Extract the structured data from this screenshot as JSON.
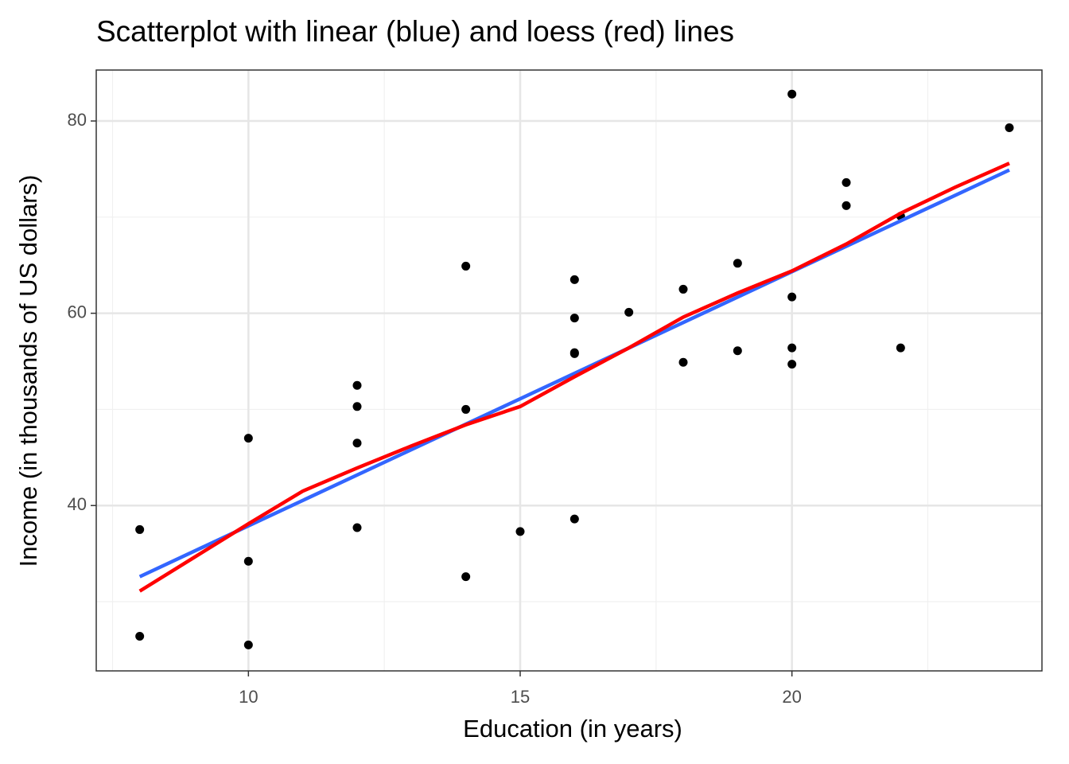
{
  "chart_data": {
    "type": "scatter",
    "title": "Scatterplot with linear (blue) and loess (red) lines",
    "x_label": "Education (in years)",
    "y_label": "Income (in thousands of US dollars)",
    "x": [
      8,
      8,
      10,
      10,
      10,
      12,
      12,
      12,
      12,
      14,
      14,
      14,
      15,
      16,
      16,
      16,
      16,
      16,
      17,
      18,
      18,
      19,
      19,
      20,
      20,
      20,
      20,
      21,
      21,
      22,
      22,
      24
    ],
    "values": [
      37.5,
      26.4,
      47.0,
      34.2,
      25.5,
      52.5,
      50.3,
      46.5,
      37.7,
      64.9,
      50.0,
      32.6,
      37.3,
      63.5,
      59.5,
      55.9,
      55.8,
      38.6,
      60.1,
      62.5,
      54.9,
      65.2,
      56.1,
      82.8,
      61.7,
      56.4,
      54.7,
      73.6,
      71.2,
      70.1,
      56.4,
      79.3
    ],
    "color": "#000000",
    "lines": [
      {
        "color": "#3366ff",
        "x": [
          8,
          24
        ],
        "values": [
          32.6,
          74.9
        ]
      },
      {
        "color": "#ff0000",
        "x": [
          8,
          9,
          10,
          11,
          12,
          13,
          14,
          15,
          16,
          17,
          18,
          19,
          20,
          21,
          22,
          23,
          24
        ],
        "values": [
          31.1,
          34.6,
          38.1,
          41.5,
          43.9,
          46.2,
          48.4,
          50.3,
          53.4,
          56.4,
          59.6,
          62.1,
          64.4,
          67.2,
          70.4,
          73.1,
          75.6
        ]
      }
    ],
    "xlim": [
      7.2,
      24.6
    ],
    "ylim": [
      22.8,
      85.3
    ],
    "xticks": [
      10,
      15,
      20
    ],
    "yticks": [
      40,
      60,
      80
    ],
    "xminor": [
      7.5,
      12.5,
      17.5,
      22.5
    ],
    "yminor": [
      30,
      50,
      70
    ],
    "grid": true
  }
}
